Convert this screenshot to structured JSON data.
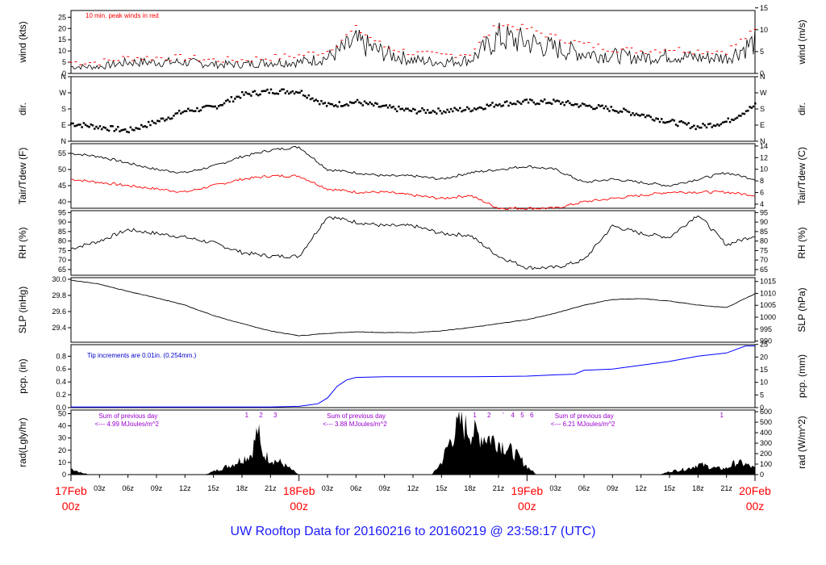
{
  "page": {
    "title": "UW Rooftop Data for 20160216  to  20160219 @ 23:58:17  (UTC)"
  },
  "colors": {
    "primary": "#000000",
    "wind_peak": "#ff0000",
    "dewpoint": "#ff0000",
    "precip": "#0000ff",
    "note_precip": "#0000cc",
    "note_rad": "#9900cc",
    "date_label": "#ff0000",
    "title": "#1a1aff"
  },
  "chart_data": [
    {
      "id": "wind",
      "type": "line",
      "ylabel_left": "wind (kts)",
      "ylabel_right": "wind (m/s)",
      "yticks_left": [
        "0",
        "5",
        "10",
        "15",
        "20",
        "25"
      ],
      "ylim_left": [
        0,
        28
      ],
      "yticks_right": [
        "0",
        "5",
        "10",
        "15"
      ],
      "ylim_right": [
        0,
        14.4
      ],
      "annotation": "10 min. peak winds in red",
      "x": [
        0,
        3,
        6,
        9,
        12,
        15,
        18,
        21,
        24,
        27,
        30,
        33,
        36,
        39,
        42,
        45,
        48,
        51,
        54,
        57,
        60,
        63,
        66,
        69,
        72
      ],
      "series": [
        {
          "values": [
            3,
            3,
            5,
            5,
            5,
            4,
            4,
            5,
            5,
            7,
            14,
            9,
            6,
            5,
            6,
            16,
            14,
            11,
            9,
            8,
            7,
            8,
            7,
            7,
            14
          ]
        },
        {
          "values": [
            5,
            5,
            7,
            7,
            7,
            6,
            6,
            7,
            8,
            10,
            20,
            12,
            9,
            8,
            9,
            22,
            20,
            16,
            13,
            11,
            10,
            11,
            10,
            10,
            19
          ]
        }
      ]
    },
    {
      "id": "dir",
      "type": "scatter",
      "ylabel_left": "dir.",
      "ylabel_right": "dir.",
      "yticks_left": [
        "N",
        "E",
        "S",
        "W",
        "N"
      ],
      "yticks_right": [
        "N",
        "E",
        "S",
        "W",
        "N"
      ],
      "ylim": [
        0,
        360
      ],
      "x": [
        0,
        3,
        6,
        9,
        12,
        15,
        18,
        21,
        24,
        27,
        30,
        33,
        36,
        39,
        42,
        45,
        48,
        51,
        54,
        57,
        60,
        63,
        66,
        69,
        72
      ],
      "values": [
        100,
        80,
        60,
        110,
        170,
        190,
        260,
        280,
        280,
        200,
        220,
        190,
        170,
        170,
        180,
        210,
        220,
        220,
        200,
        180,
        150,
        110,
        80,
        110,
        200
      ]
    },
    {
      "id": "temp",
      "type": "line",
      "ylabel_left": "Tair/Tdew (F)",
      "ylabel_right": "Tair/Tdew (C)",
      "yticks_left": [
        "40",
        "45",
        "50",
        "55"
      ],
      "ylim_left": [
        38,
        58
      ],
      "yticks_right": [
        "4",
        "6",
        "8",
        "10",
        "12",
        "14"
      ],
      "ylim_right": [
        3.3,
        14.4
      ],
      "x": [
        0,
        3,
        6,
        9,
        12,
        15,
        18,
        21,
        24,
        27,
        30,
        33,
        36,
        39,
        42,
        45,
        48,
        51,
        54,
        57,
        60,
        63,
        66,
        69,
        72
      ],
      "series": [
        {
          "values": [
            55,
            54,
            52,
            50,
            49,
            51,
            54,
            56,
            57,
            50,
            49,
            48,
            48,
            47,
            49,
            50,
            51,
            50,
            46,
            47,
            46,
            45,
            47,
            49,
            47
          ]
        },
        {
          "values": [
            47,
            46,
            45,
            44,
            43,
            45,
            47,
            48,
            48,
            44,
            43,
            43,
            42,
            41,
            42,
            38,
            38,
            38,
            40,
            41,
            42,
            43,
            43,
            43,
            42
          ]
        }
      ]
    },
    {
      "id": "rh",
      "type": "line",
      "ylabel_left": "RH (%)",
      "ylabel_right": "RH (%)",
      "yticks_left": [
        "65",
        "70",
        "75",
        "80",
        "85",
        "90",
        "95"
      ],
      "ylim_left": [
        62,
        96
      ],
      "yticks_right": [
        "65",
        "70",
        "75",
        "80",
        "85",
        "90",
        "95"
      ],
      "x": [
        0,
        3,
        6,
        9,
        12,
        15,
        18,
        21,
        24,
        27,
        30,
        33,
        36,
        39,
        42,
        45,
        48,
        51,
        54,
        57,
        60,
        63,
        66,
        69,
        72
      ],
      "values": [
        76,
        80,
        86,
        84,
        82,
        79,
        74,
        72,
        72,
        93,
        90,
        88,
        88,
        84,
        83,
        72,
        66,
        66,
        70,
        88,
        84,
        82,
        94,
        78,
        83
      ]
    },
    {
      "id": "slp",
      "type": "line",
      "ylabel_left": "SLP (inHg)",
      "ylabel_right": "SLP (hPa)",
      "yticks_left": [
        "29.4",
        "29.6",
        "29.8",
        "30.0"
      ],
      "ylim_left": [
        29.22,
        30.02
      ],
      "yticks_right": [
        "990",
        "995",
        "1000",
        "1005",
        "1010",
        "1015"
      ],
      "ylim_right": [
        989.5,
        1016.6
      ],
      "x": [
        0,
        3,
        6,
        9,
        12,
        15,
        18,
        21,
        24,
        27,
        30,
        33,
        36,
        39,
        42,
        45,
        48,
        51,
        54,
        57,
        60,
        63,
        66,
        69,
        72
      ],
      "values": [
        29.99,
        29.94,
        29.85,
        29.77,
        29.68,
        29.55,
        29.45,
        29.36,
        29.3,
        29.33,
        29.35,
        29.34,
        29.34,
        29.36,
        29.4,
        29.45,
        29.5,
        29.58,
        29.68,
        29.75,
        29.76,
        29.73,
        29.68,
        29.65,
        29.82
      ]
    },
    {
      "id": "pcp",
      "type": "line",
      "ylabel_left": "pcp. (in)",
      "ylabel_right": "pcp. (mm)",
      "yticks_left": [
        "0.0",
        "0.2",
        "0.4",
        "0.6",
        "0.8"
      ],
      "ylim_left": [
        0,
        0.98
      ],
      "yticks_right": [
        "0",
        "5",
        "10",
        "15",
        "20",
        "25"
      ],
      "ylim_right": [
        0,
        24.9
      ],
      "annotation": "Tip increments are 0.01in. (0.254mm.)",
      "x": [
        0,
        18,
        21,
        24,
        26,
        27,
        28,
        29,
        30,
        33,
        36,
        42,
        48,
        51,
        53,
        54,
        57,
        60,
        63,
        66,
        69,
        71,
        72
      ],
      "values": [
        0.01,
        0.01,
        0.01,
        0.02,
        0.06,
        0.15,
        0.33,
        0.43,
        0.47,
        0.48,
        0.48,
        0.48,
        0.49,
        0.51,
        0.52,
        0.58,
        0.6,
        0.66,
        0.72,
        0.8,
        0.85,
        0.96,
        0.96
      ]
    },
    {
      "id": "rad",
      "type": "area",
      "ylabel_left": "rad(Lgly/hr)",
      "ylabel_right": "rad (W/m^2)",
      "yticks_left": [
        "0",
        "10",
        "20",
        "30",
        "40",
        "50"
      ],
      "ylim_left": [
        0,
        53
      ],
      "yticks_right": [
        "0",
        "100",
        "200",
        "300",
        "400",
        "500",
        "600"
      ],
      "ylim_right": [
        0,
        616
      ],
      "x": [
        0,
        1,
        2,
        14,
        15,
        17,
        18,
        19,
        19.7,
        20,
        21,
        22,
        23,
        24,
        38,
        39,
        40,
        41,
        42,
        43,
        44,
        45,
        46,
        47,
        48,
        49,
        62,
        63,
        65,
        66,
        67,
        68,
        69,
        70,
        71,
        72
      ],
      "values": [
        6,
        2,
        0,
        0,
        3,
        10,
        15,
        20,
        45,
        22,
        15,
        12,
        6,
        0,
        0,
        12,
        35,
        50,
        42,
        38,
        36,
        32,
        25,
        18,
        8,
        0,
        0,
        3,
        6,
        10,
        8,
        6,
        6,
        12,
        10,
        6
      ],
      "notes": [
        {
          "text": "Sum of previous day",
          "x": 2.5
        },
        {
          "text": "<--- 4.99 MJoules/m^2",
          "x": 2.5
        },
        {
          "text": "Sum of previous day",
          "x": 26.5
        },
        {
          "text": "<--- 3.88 MJoules/m^2",
          "x": 26.5
        },
        {
          "text": "Sum of previous day",
          "x": 50.5
        },
        {
          "text": "<--- 6.21 MJoules/m^2",
          "x": 50.5
        }
      ],
      "markers": [
        {
          "text": "1",
          "x": 18.5
        },
        {
          "text": "2",
          "x": 20
        },
        {
          "text": "3",
          "x": 21.5
        },
        {
          "text": "1",
          "x": 42.5
        },
        {
          "text": "2",
          "x": 44
        },
        {
          "text": "'",
          "x": 45.5
        },
        {
          "text": "4",
          "x": 46.5
        },
        {
          "text": "5",
          "x": 47.5
        },
        {
          "text": "6",
          "x": 48.5
        },
        {
          "text": "1",
          "x": 68.5
        }
      ]
    }
  ],
  "time_axis": {
    "xlim": [
      0,
      72
    ],
    "hour_ticks": [
      {
        "label": "03z",
        "x": 3
      },
      {
        "label": "06z",
        "x": 6
      },
      {
        "label": "09z",
        "x": 9
      },
      {
        "label": "12z",
        "x": 12
      },
      {
        "label": "15z",
        "x": 15
      },
      {
        "label": "18z",
        "x": 18
      },
      {
        "label": "21z",
        "x": 21
      },
      {
        "label": "03z",
        "x": 27
      },
      {
        "label": "06z",
        "x": 30
      },
      {
        "label": "09z",
        "x": 33
      },
      {
        "label": "12z",
        "x": 36
      },
      {
        "label": "15z",
        "x": 39
      },
      {
        "label": "18z",
        "x": 42
      },
      {
        "label": "21z",
        "x": 45
      },
      {
        "label": "03z",
        "x": 51
      },
      {
        "label": "06z",
        "x": 54
      },
      {
        "label": "09z",
        "x": 57
      },
      {
        "label": "12z",
        "x": 60
      },
      {
        "label": "15z",
        "x": 63
      },
      {
        "label": "18z",
        "x": 66
      },
      {
        "label": "21z",
        "x": 69
      }
    ],
    "date_ticks": [
      {
        "date": "17Feb",
        "time": "00z",
        "x": 0
      },
      {
        "date": "18Feb",
        "time": "00z",
        "x": 24
      },
      {
        "date": "19Feb",
        "time": "00z",
        "x": 48
      },
      {
        "date": "20Feb",
        "time": "00z",
        "x": 72
      }
    ]
  }
}
